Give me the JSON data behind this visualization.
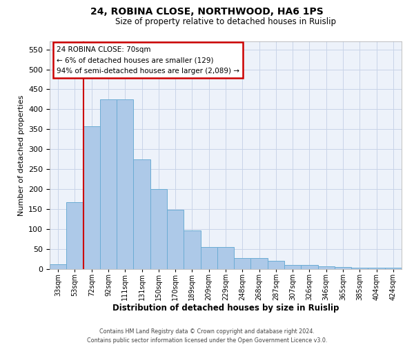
{
  "title1": "24, ROBINA CLOSE, NORTHWOOD, HA6 1PS",
  "title2": "Size of property relative to detached houses in Ruislip",
  "xlabel": "Distribution of detached houses by size in Ruislip",
  "ylabel": "Number of detached properties",
  "categories": [
    "33sqm",
    "53sqm",
    "72sqm",
    "92sqm",
    "111sqm",
    "131sqm",
    "150sqm",
    "170sqm",
    "189sqm",
    "209sqm",
    "229sqm",
    "248sqm",
    "268sqm",
    "287sqm",
    "307sqm",
    "326sqm",
    "346sqm",
    "365sqm",
    "385sqm",
    "404sqm",
    "424sqm"
  ],
  "values": [
    12,
    168,
    357,
    425,
    425,
    275,
    200,
    148,
    96,
    55,
    55,
    27,
    27,
    20,
    11,
    11,
    7,
    5,
    4,
    4,
    4
  ],
  "bar_color": "#adc9e8",
  "bar_edge_color": "#6bacd4",
  "red_line_color": "#cc0000",
  "annotation_text_line1": "24 ROBINA CLOSE: 70sqm",
  "annotation_text_line2": "← 6% of detached houses are smaller (129)",
  "annotation_text_line3": "94% of semi-detached houses are larger (2,089) →",
  "annotation_box_color": "#ffffff",
  "annotation_box_edge": "#cc0000",
  "grid_color": "#c8d4e8",
  "footer_line1": "Contains HM Land Registry data © Crown copyright and database right 2024.",
  "footer_line2": "Contains public sector information licensed under the Open Government Licence v3.0.",
  "ylim": [
    0,
    570
  ],
  "yticks": [
    0,
    50,
    100,
    150,
    200,
    250,
    300,
    350,
    400,
    450,
    500,
    550
  ],
  "bg_color": "#edf2fa"
}
